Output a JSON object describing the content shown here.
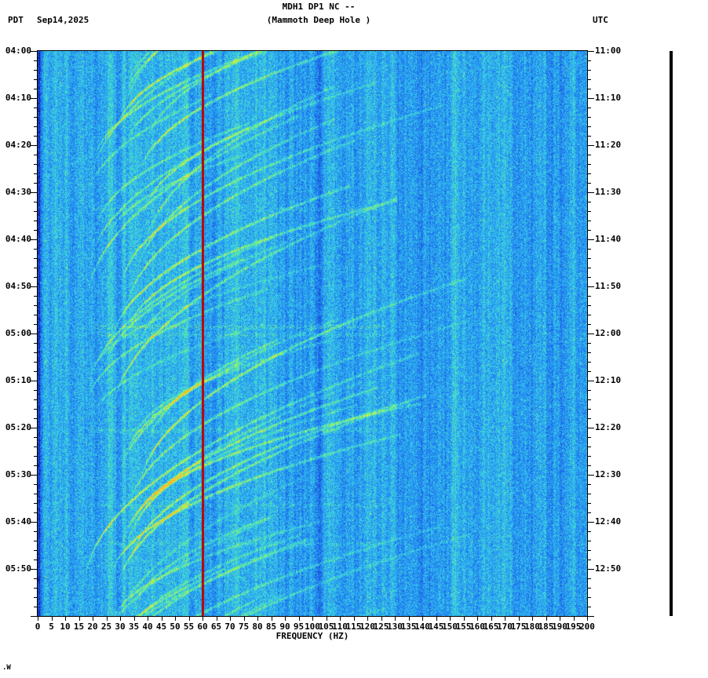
{
  "header": {
    "station": "MDH1 DP1 NC --",
    "subtitle": "(Mammoth Deep Hole )",
    "left_timezone": "PDT",
    "date": "Sep14,2025",
    "right_timezone": "UTC"
  },
  "chart_data": {
    "type": "heatmap",
    "subtype": "seismic-spectrogram",
    "title": "MDH1 DP1 NC --",
    "subtitle": "(Mammoth Deep Hole )",
    "xlabel": "FREQUENCY (HZ)",
    "x_range_hz": [
      0,
      200
    ],
    "x_ticks_hz": [
      0,
      5,
      10,
      15,
      20,
      25,
      30,
      35,
      40,
      45,
      50,
      55,
      60,
      65,
      70,
      75,
      80,
      85,
      90,
      95,
      100,
      105,
      110,
      115,
      120,
      125,
      130,
      135,
      140,
      145,
      150,
      155,
      160,
      165,
      170,
      175,
      180,
      185,
      190,
      195,
      200
    ],
    "left_axis": {
      "timezone": "PDT",
      "date": "Sep14,2025",
      "tick_labels": [
        "04:00",
        "04:10",
        "04:20",
        "04:30",
        "04:40",
        "04:50",
        "05:00",
        "05:10",
        "05:20",
        "05:30",
        "05:40",
        "05:50"
      ]
    },
    "right_axis": {
      "timezone": "UTC",
      "tick_labels": [
        "11:00",
        "11:10",
        "11:20",
        "11:30",
        "11:40",
        "11:50",
        "12:00",
        "12:10",
        "12:20",
        "12:30",
        "12:40",
        "12:50"
      ]
    },
    "major_tick_interval_minutes": 10,
    "minor_tick_interval_minutes": 2,
    "red_marker_line_hz": 60,
    "red_marker_color": "#bb0000",
    "palette": {
      "background_low": "#0a0a78",
      "background_mid": "#00b4e6",
      "signal_high": "#e6e63c",
      "text": "#000000",
      "trace": "#000000"
    },
    "content_description": "Blue speckled noise spectrogram, time vertical (04:00-06:00 PDT / 11:00-13:00 UTC), frequency 0-200 Hz horizontal, with repeating upward-gliding tremor arcs between ~20 Hz and ~140 Hz and a red vertical marker line at 60 Hz"
  },
  "footer": {
    "corner_mark": ".W"
  },
  "trace": {
    "color": "#000000"
  }
}
